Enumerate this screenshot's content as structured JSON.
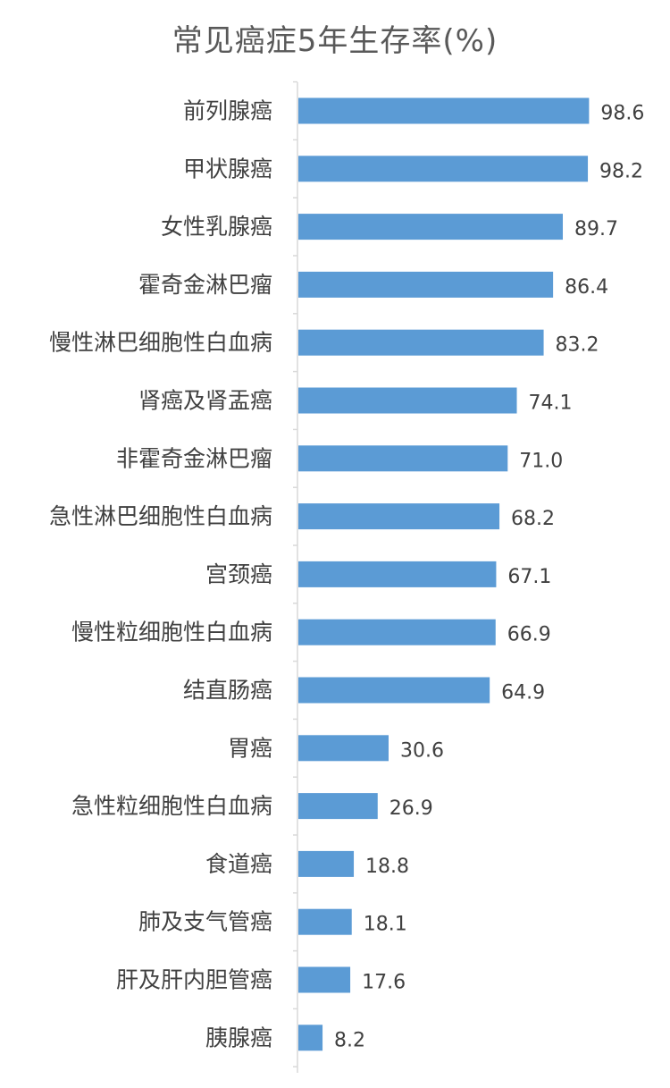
{
  "title": "常见癌症5年生存率(%)",
  "colors": {
    "bar": "#5B9BD5",
    "axis": "#D9D9D9",
    "text": "#404040",
    "title": "#595959"
  },
  "chart_data": {
    "type": "bar",
    "orientation": "horizontal",
    "title": "常见癌症5年生存率(%)",
    "xlabel": "",
    "ylabel": "",
    "xlim": [
      0,
      100
    ],
    "grid": false,
    "legend": "none",
    "categories": [
      "前列腺癌",
      "甲状腺癌",
      "女性乳腺癌",
      "霍奇金淋巴瘤",
      "慢性淋巴细胞性白血病",
      "肾癌及肾盂癌",
      "非霍奇金淋巴瘤",
      "急性淋巴细胞性白血病",
      "宫颈癌",
      "慢性粒细胞性白血病",
      "结直肠癌",
      "胃癌",
      "急性粒细胞性白血病",
      "食道癌",
      "肺及支气管癌",
      "肝及肝内胆管癌",
      "胰腺癌"
    ],
    "values": [
      98.6,
      98.2,
      89.7,
      86.4,
      83.2,
      74.1,
      71.0,
      68.2,
      67.1,
      66.9,
      64.9,
      30.6,
      26.9,
      18.8,
      18.1,
      17.6,
      8.2
    ],
    "value_labels": [
      "98.6",
      "98.2",
      "89.7",
      "86.4",
      "83.2",
      "74.1",
      "71.0",
      "68.2",
      "67.1",
      "66.9",
      "64.9",
      "30.6",
      "26.9",
      "18.8",
      "18.1",
      "17.6",
      "8.2"
    ]
  }
}
